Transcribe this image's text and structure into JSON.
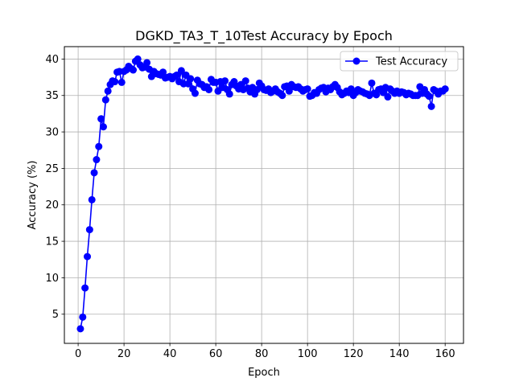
{
  "chart_data": {
    "type": "line",
    "title": "DGKD_TA3_T_10Test Accuracy by Epoch",
    "xlabel": "Epoch",
    "ylabel": "Accuracy (%)",
    "xlim": [
      -6,
      168
    ],
    "ylim": [
      1.0,
      41.7
    ],
    "xticks": [
      0,
      20,
      40,
      60,
      80,
      100,
      120,
      140,
      160
    ],
    "yticks": [
      5,
      10,
      15,
      20,
      25,
      30,
      35,
      40
    ],
    "grid": true,
    "legend_position": "top-right",
    "series": [
      {
        "name": "Test Accuracy",
        "color": "#0000ff",
        "marker": "circle",
        "x": [
          1,
          2,
          3,
          4,
          5,
          6,
          7,
          8,
          9,
          10,
          11,
          12,
          13,
          14,
          15,
          16,
          17,
          18,
          19,
          20,
          21,
          22,
          23,
          24,
          25,
          26,
          27,
          28,
          29,
          30,
          31,
          32,
          33,
          34,
          35,
          36,
          37,
          38,
          39,
          40,
          41,
          42,
          43,
          44,
          45,
          46,
          47,
          48,
          49,
          50,
          51,
          52,
          53,
          54,
          55,
          56,
          57,
          58,
          59,
          60,
          61,
          62,
          63,
          64,
          65,
          66,
          67,
          68,
          69,
          70,
          71,
          72,
          73,
          74,
          75,
          76,
          77,
          78,
          79,
          80,
          81,
          82,
          83,
          84,
          85,
          86,
          87,
          88,
          89,
          90,
          91,
          92,
          93,
          94,
          95,
          96,
          97,
          98,
          99,
          100,
          101,
          102,
          103,
          104,
          105,
          106,
          107,
          108,
          109,
          110,
          111,
          112,
          113,
          114,
          115,
          116,
          117,
          118,
          119,
          120,
          121,
          122,
          123,
          124,
          125,
          126,
          127,
          128,
          129,
          130,
          131,
          132,
          133,
          134,
          135,
          136,
          137,
          138,
          139,
          140,
          141,
          142,
          143,
          144,
          145,
          146,
          147,
          148,
          149,
          150,
          151,
          152,
          153,
          154,
          155,
          156,
          157,
          158,
          159,
          160
        ],
        "values": [
          3.0,
          4.6,
          8.6,
          12.9,
          16.6,
          20.7,
          24.4,
          26.2,
          28.0,
          31.8,
          30.7,
          34.4,
          35.6,
          36.5,
          37.0,
          36.9,
          38.2,
          38.3,
          36.8,
          38.3,
          38.5,
          39.0,
          38.7,
          38.5,
          39.7,
          40.0,
          39.2,
          38.8,
          38.9,
          39.5,
          38.6,
          37.6,
          38.3,
          38.0,
          37.9,
          37.8,
          38.2,
          37.4,
          37.5,
          37.6,
          37.3,
          37.6,
          37.8,
          36.9,
          38.4,
          36.6,
          37.8,
          36.6,
          37.3,
          35.9,
          35.3,
          37.1,
          36.6,
          36.5,
          36.1,
          36.2,
          35.8,
          37.2,
          36.8,
          36.8,
          35.6,
          36.9,
          36.1,
          37.0,
          35.8,
          35.2,
          36.5,
          36.9,
          36.3,
          35.9,
          36.5,
          35.8,
          37.0,
          36.0,
          35.5,
          36.1,
          35.2,
          35.8,
          36.7,
          36.3,
          35.8,
          35.7,
          35.9,
          35.4,
          35.6,
          35.9,
          35.5,
          35.3,
          35.0,
          36.2,
          36.3,
          35.6,
          36.5,
          36.2,
          36.1,
          36.2,
          35.9,
          35.6,
          35.8,
          35.9,
          34.9,
          35.0,
          35.4,
          35.3,
          35.8,
          36.0,
          36.1,
          35.5,
          36.0,
          35.8,
          36.2,
          36.5,
          36.1,
          35.5,
          35.1,
          35.3,
          35.6,
          35.4,
          35.9,
          35.0,
          35.4,
          35.8,
          35.6,
          35.5,
          35.3,
          35.2,
          35.0,
          36.7,
          35.3,
          35.1,
          35.8,
          35.9,
          35.4,
          36.1,
          34.8,
          35.9,
          35.6,
          35.3,
          35.6,
          35.3,
          35.5,
          35.4,
          35.1,
          35.3,
          35.2,
          35.0,
          35.0,
          35.0,
          36.2,
          35.3,
          35.8,
          35.2,
          34.9,
          33.5,
          35.8,
          35.6,
          35.2,
          35.6,
          35.6,
          35.9
        ]
      }
    ]
  }
}
